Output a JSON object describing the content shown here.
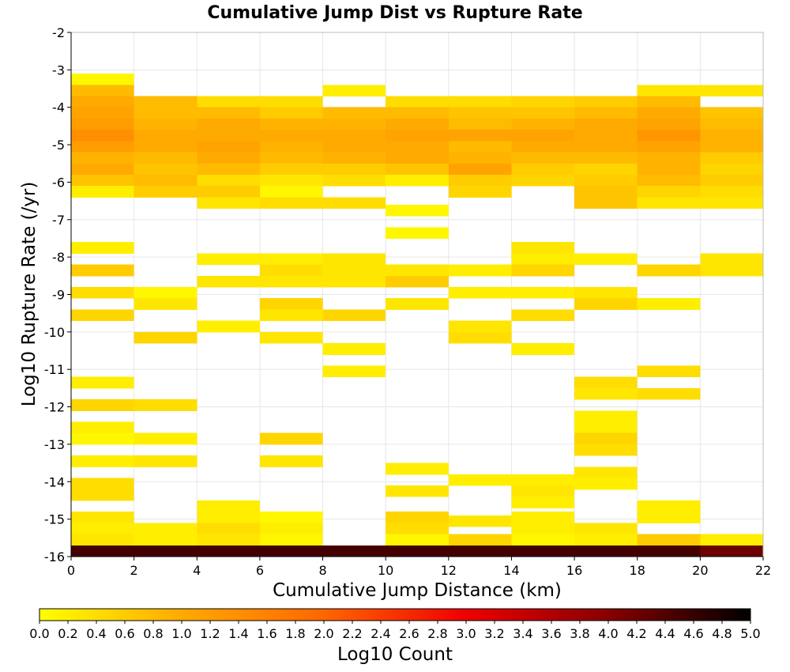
{
  "chart_data": {
    "type": "heatmap",
    "title": "Cumulative Jump Dist vs Rupture Rate",
    "xlabel": "Cumulative Jump Distance (km)",
    "ylabel": "Log10 Rupture Rate (/yr)",
    "xlim": [
      0,
      22
    ],
    "ylim": [
      -16,
      -2
    ],
    "x_ticks": [
      "0",
      "2",
      "4",
      "6",
      "8",
      "10",
      "12",
      "14",
      "16",
      "18",
      "20",
      "22"
    ],
    "y_ticks": [
      "-2",
      "-3",
      "-4",
      "-5",
      "-6",
      "-7",
      "-8",
      "-9",
      "-10",
      "-11",
      "-12",
      "-13",
      "-14",
      "-15",
      "-16"
    ],
    "grid": true,
    "x_bin_width": 2,
    "y_bin_height": 0.3,
    "colorbar": {
      "label": "Log10 Count",
      "range": [
        0,
        5
      ],
      "ticks": [
        "0.0",
        "0.2",
        "0.4",
        "0.6",
        "0.8",
        "1.0",
        "1.2",
        "1.4",
        "1.6",
        "1.8",
        "2.0",
        "2.2",
        "2.4",
        "2.6",
        "2.8",
        "3.0",
        "3.2",
        "3.4",
        "3.6",
        "3.8",
        "4.0",
        "4.2",
        "4.4",
        "4.6",
        "4.8",
        "5.0"
      ],
      "colors": [
        "#ffff00",
        "#ffaa00",
        "#ff6600",
        "#ee0000",
        "#880000",
        "#000000"
      ]
    },
    "cells": [
      {
        "x": 0,
        "y": -3.4,
        "v": 0.1
      },
      {
        "x": 0,
        "y": -3.7,
        "v": 0.8
      },
      {
        "x": 0,
        "y": -4.0,
        "v": 1.0
      },
      {
        "x": 0,
        "y": -4.3,
        "v": 1.1
      },
      {
        "x": 0,
        "y": -4.6,
        "v": 1.2
      },
      {
        "x": 0,
        "y": -4.9,
        "v": 1.4
      },
      {
        "x": 0,
        "y": -5.2,
        "v": 1.2
      },
      {
        "x": 0,
        "y": -5.5,
        "v": 0.9
      },
      {
        "x": 0,
        "y": -5.8,
        "v": 1.0
      },
      {
        "x": 0,
        "y": -6.1,
        "v": 0.7
      },
      {
        "x": 0,
        "y": -6.4,
        "v": 0.2
      },
      {
        "x": 0,
        "y": -7.9,
        "v": 0.2
      },
      {
        "x": 0,
        "y": -8.5,
        "v": 0.6
      },
      {
        "x": 0,
        "y": -9.1,
        "v": 0.4
      },
      {
        "x": 0,
        "y": -9.7,
        "v": 0.5
      },
      {
        "x": 0,
        "y": -11.5,
        "v": 0.2
      },
      {
        "x": 0,
        "y": -12.1,
        "v": 0.5
      },
      {
        "x": 0,
        "y": -12.7,
        "v": 0.2
      },
      {
        "x": 0,
        "y": -13.0,
        "v": 0.1
      },
      {
        "x": 0,
        "y": -13.6,
        "v": 0.2
      },
      {
        "x": 0,
        "y": -14.2,
        "v": 0.4
      },
      {
        "x": 0,
        "y": -14.5,
        "v": 0.4
      },
      {
        "x": 0,
        "y": -15.1,
        "v": 0.3
      },
      {
        "x": 0,
        "y": -15.4,
        "v": 0.2
      },
      {
        "x": 0,
        "y": -15.7,
        "v": 0.3
      },
      {
        "x": 0,
        "y": -16.0,
        "v": 4.5
      },
      {
        "x": 2,
        "y": -4.0,
        "v": 0.8
      },
      {
        "x": 2,
        "y": -4.3,
        "v": 0.8
      },
      {
        "x": 2,
        "y": -4.6,
        "v": 0.9
      },
      {
        "x": 2,
        "y": -4.9,
        "v": 1.0
      },
      {
        "x": 2,
        "y": -5.2,
        "v": 1.0
      },
      {
        "x": 2,
        "y": -5.5,
        "v": 0.8
      },
      {
        "x": 2,
        "y": -5.8,
        "v": 0.7
      },
      {
        "x": 2,
        "y": -6.1,
        "v": 0.8
      },
      {
        "x": 2,
        "y": -6.4,
        "v": 0.6
      },
      {
        "x": 2,
        "y": -9.1,
        "v": 0.1
      },
      {
        "x": 2,
        "y": -9.4,
        "v": 0.3
      },
      {
        "x": 2,
        "y": -10.3,
        "v": 0.5
      },
      {
        "x": 2,
        "y": -12.1,
        "v": 0.4
      },
      {
        "x": 2,
        "y": -13.0,
        "v": 0.2
      },
      {
        "x": 2,
        "y": -13.6,
        "v": 0.3
      },
      {
        "x": 2,
        "y": -15.4,
        "v": 0.2
      },
      {
        "x": 2,
        "y": -15.7,
        "v": 0.2
      },
      {
        "x": 2,
        "y": -16.0,
        "v": 4.5
      },
      {
        "x": 4,
        "y": -4.0,
        "v": 0.4
      },
      {
        "x": 4,
        "y": -4.3,
        "v": 0.8
      },
      {
        "x": 4,
        "y": -4.6,
        "v": 1.0
      },
      {
        "x": 4,
        "y": -4.9,
        "v": 1.0
      },
      {
        "x": 4,
        "y": -5.2,
        "v": 1.1
      },
      {
        "x": 4,
        "y": -5.5,
        "v": 1.0
      },
      {
        "x": 4,
        "y": -5.8,
        "v": 0.8
      },
      {
        "x": 4,
        "y": -6.1,
        "v": 0.4
      },
      {
        "x": 4,
        "y": -6.4,
        "v": 0.6
      },
      {
        "x": 4,
        "y": -6.7,
        "v": 0.3
      },
      {
        "x": 4,
        "y": -8.2,
        "v": 0.2
      },
      {
        "x": 4,
        "y": -8.8,
        "v": 0.3
      },
      {
        "x": 4,
        "y": -10.0,
        "v": 0.2
      },
      {
        "x": 4,
        "y": -14.8,
        "v": 0.2
      },
      {
        "x": 4,
        "y": -15.1,
        "v": 0.2
      },
      {
        "x": 4,
        "y": -15.4,
        "v": 0.4
      },
      {
        "x": 4,
        "y": -15.7,
        "v": 0.3
      },
      {
        "x": 4,
        "y": -16.0,
        "v": 4.5
      },
      {
        "x": 6,
        "y": -4.0,
        "v": 0.4
      },
      {
        "x": 6,
        "y": -4.3,
        "v": 0.6
      },
      {
        "x": 6,
        "y": -4.6,
        "v": 0.9
      },
      {
        "x": 6,
        "y": -4.9,
        "v": 1.0
      },
      {
        "x": 6,
        "y": -5.2,
        "v": 0.9
      },
      {
        "x": 6,
        "y": -5.5,
        "v": 0.8
      },
      {
        "x": 6,
        "y": -5.8,
        "v": 0.6
      },
      {
        "x": 6,
        "y": -6.1,
        "v": 0.3
      },
      {
        "x": 6,
        "y": -6.4,
        "v": 0.1
      },
      {
        "x": 6,
        "y": -6.7,
        "v": 0.4
      },
      {
        "x": 6,
        "y": -8.2,
        "v": 0.2
      },
      {
        "x": 6,
        "y": -8.5,
        "v": 0.4
      },
      {
        "x": 6,
        "y": -8.8,
        "v": 0.3
      },
      {
        "x": 6,
        "y": -9.4,
        "v": 0.5
      },
      {
        "x": 6,
        "y": -9.7,
        "v": 0.3
      },
      {
        "x": 6,
        "y": -10.3,
        "v": 0.3
      },
      {
        "x": 6,
        "y": -13.0,
        "v": 0.5
      },
      {
        "x": 6,
        "y": -13.6,
        "v": 0.3
      },
      {
        "x": 6,
        "y": -15.1,
        "v": 0.1
      },
      {
        "x": 6,
        "y": -15.4,
        "v": 0.2
      },
      {
        "x": 6,
        "y": -15.7,
        "v": 0.1
      },
      {
        "x": 6,
        "y": -16.0,
        "v": 4.5
      },
      {
        "x": 8,
        "y": -3.7,
        "v": 0.2
      },
      {
        "x": 8,
        "y": -4.3,
        "v": 0.8
      },
      {
        "x": 8,
        "y": -4.6,
        "v": 0.9
      },
      {
        "x": 8,
        "y": -4.9,
        "v": 1.0
      },
      {
        "x": 8,
        "y": -5.2,
        "v": 1.0
      },
      {
        "x": 8,
        "y": -5.5,
        "v": 0.9
      },
      {
        "x": 8,
        "y": -5.8,
        "v": 0.6
      },
      {
        "x": 8,
        "y": -6.1,
        "v": 0.4
      },
      {
        "x": 8,
        "y": -6.7,
        "v": 0.4
      },
      {
        "x": 8,
        "y": -8.2,
        "v": 0.3
      },
      {
        "x": 8,
        "y": -8.5,
        "v": 0.3
      },
      {
        "x": 8,
        "y": -8.8,
        "v": 0.3
      },
      {
        "x": 8,
        "y": -9.7,
        "v": 0.5
      },
      {
        "x": 8,
        "y": -10.6,
        "v": 0.2
      },
      {
        "x": 8,
        "y": -11.2,
        "v": 0.2
      },
      {
        "x": 8,
        "y": -16.0,
        "v": 4.5
      },
      {
        "x": 10,
        "y": -4.0,
        "v": 0.4
      },
      {
        "x": 10,
        "y": -4.3,
        "v": 0.8
      },
      {
        "x": 10,
        "y": -4.6,
        "v": 1.0
      },
      {
        "x": 10,
        "y": -4.9,
        "v": 1.1
      },
      {
        "x": 10,
        "y": -5.2,
        "v": 1.0
      },
      {
        "x": 10,
        "y": -5.5,
        "v": 1.0
      },
      {
        "x": 10,
        "y": -5.8,
        "v": 0.7
      },
      {
        "x": 10,
        "y": -6.1,
        "v": 0.2
      },
      {
        "x": 10,
        "y": -6.9,
        "v": 0.1
      },
      {
        "x": 10,
        "y": -7.5,
        "v": 0.1
      },
      {
        "x": 10,
        "y": -8.5,
        "v": 0.3
      },
      {
        "x": 10,
        "y": -8.8,
        "v": 0.6
      },
      {
        "x": 10,
        "y": -9.4,
        "v": 0.3
      },
      {
        "x": 10,
        "y": -13.8,
        "v": 0.2
      },
      {
        "x": 10,
        "y": -14.4,
        "v": 0.3
      },
      {
        "x": 10,
        "y": -15.1,
        "v": 0.5
      },
      {
        "x": 10,
        "y": -15.4,
        "v": 0.4
      },
      {
        "x": 10,
        "y": -15.7,
        "v": 0.1
      },
      {
        "x": 10,
        "y": -16.0,
        "v": 4.5
      },
      {
        "x": 12,
        "y": -4.0,
        "v": 0.4
      },
      {
        "x": 12,
        "y": -4.3,
        "v": 0.7
      },
      {
        "x": 12,
        "y": -4.6,
        "v": 0.8
      },
      {
        "x": 12,
        "y": -4.9,
        "v": 1.1
      },
      {
        "x": 12,
        "y": -5.2,
        "v": 0.8
      },
      {
        "x": 12,
        "y": -5.5,
        "v": 0.9
      },
      {
        "x": 12,
        "y": -5.8,
        "v": 1.1
      },
      {
        "x": 12,
        "y": -6.1,
        "v": 0.6
      },
      {
        "x": 12,
        "y": -6.4,
        "v": 0.5
      },
      {
        "x": 12,
        "y": -8.5,
        "v": 0.2
      },
      {
        "x": 12,
        "y": -9.1,
        "v": 0.2
      },
      {
        "x": 12,
        "y": -10.0,
        "v": 0.3
      },
      {
        "x": 12,
        "y": -10.3,
        "v": 0.4
      },
      {
        "x": 12,
        "y": -14.1,
        "v": 0.2
      },
      {
        "x": 12,
        "y": -15.2,
        "v": 0.3
      },
      {
        "x": 12,
        "y": -15.7,
        "v": 0.5
      },
      {
        "x": 12,
        "y": -16.0,
        "v": 4.5
      },
      {
        "x": 14,
        "y": -4.0,
        "v": 0.5
      },
      {
        "x": 14,
        "y": -4.3,
        "v": 0.7
      },
      {
        "x": 14,
        "y": -4.6,
        "v": 0.9
      },
      {
        "x": 14,
        "y": -4.9,
        "v": 1.1
      },
      {
        "x": 14,
        "y": -5.2,
        "v": 1.0
      },
      {
        "x": 14,
        "y": -5.5,
        "v": 0.8
      },
      {
        "x": 14,
        "y": -5.8,
        "v": 0.6
      },
      {
        "x": 14,
        "y": -6.1,
        "v": 0.5
      },
      {
        "x": 14,
        "y": -7.9,
        "v": 0.3
      },
      {
        "x": 14,
        "y": -8.2,
        "v": 0.2
      },
      {
        "x": 14,
        "y": -8.5,
        "v": 0.5
      },
      {
        "x": 14,
        "y": -9.1,
        "v": 0.2
      },
      {
        "x": 14,
        "y": -9.7,
        "v": 0.4
      },
      {
        "x": 14,
        "y": -10.6,
        "v": 0.2
      },
      {
        "x": 14,
        "y": -14.1,
        "v": 0.2
      },
      {
        "x": 14,
        "y": -14.4,
        "v": 0.3
      },
      {
        "x": 14,
        "y": -14.7,
        "v": 0.2
      },
      {
        "x": 14,
        "y": -15.1,
        "v": 0.2
      },
      {
        "x": 14,
        "y": -15.4,
        "v": 0.2
      },
      {
        "x": 14,
        "y": -15.7,
        "v": 0.1
      },
      {
        "x": 14,
        "y": -16.0,
        "v": 4.5
      },
      {
        "x": 16,
        "y": -4.0,
        "v": 0.6
      },
      {
        "x": 16,
        "y": -4.3,
        "v": 0.8
      },
      {
        "x": 16,
        "y": -4.6,
        "v": 1.0
      },
      {
        "x": 16,
        "y": -4.9,
        "v": 1.0
      },
      {
        "x": 16,
        "y": -5.2,
        "v": 1.0
      },
      {
        "x": 16,
        "y": -5.5,
        "v": 0.8
      },
      {
        "x": 16,
        "y": -5.8,
        "v": 0.5
      },
      {
        "x": 16,
        "y": -6.1,
        "v": 0.6
      },
      {
        "x": 16,
        "y": -6.4,
        "v": 0.7
      },
      {
        "x": 16,
        "y": -6.7,
        "v": 0.7
      },
      {
        "x": 16,
        "y": -8.2,
        "v": 0.2
      },
      {
        "x": 16,
        "y": -9.1,
        "v": 0.3
      },
      {
        "x": 16,
        "y": -9.4,
        "v": 0.5
      },
      {
        "x": 16,
        "y": -11.5,
        "v": 0.4
      },
      {
        "x": 16,
        "y": -11.8,
        "v": 0.3
      },
      {
        "x": 16,
        "y": -12.4,
        "v": 0.2
      },
      {
        "x": 16,
        "y": -12.7,
        "v": 0.2
      },
      {
        "x": 16,
        "y": -13.0,
        "v": 0.5
      },
      {
        "x": 16,
        "y": -13.3,
        "v": 0.4
      },
      {
        "x": 16,
        "y": -13.9,
        "v": 0.3
      },
      {
        "x": 16,
        "y": -14.2,
        "v": 0.2
      },
      {
        "x": 16,
        "y": -15.4,
        "v": 0.3
      },
      {
        "x": 16,
        "y": -15.7,
        "v": 0.2
      },
      {
        "x": 16,
        "y": -16.0,
        "v": 4.5
      },
      {
        "x": 18,
        "y": -3.7,
        "v": 0.3
      },
      {
        "x": 18,
        "y": -4.0,
        "v": 0.8
      },
      {
        "x": 18,
        "y": -4.3,
        "v": 1.0
      },
      {
        "x": 18,
        "y": -4.6,
        "v": 1.1
      },
      {
        "x": 18,
        "y": -4.9,
        "v": 1.3
      },
      {
        "x": 18,
        "y": -5.2,
        "v": 1.1
      },
      {
        "x": 18,
        "y": -5.5,
        "v": 0.9
      },
      {
        "x": 18,
        "y": -5.8,
        "v": 0.9
      },
      {
        "x": 18,
        "y": -6.1,
        "v": 0.8
      },
      {
        "x": 18,
        "y": -6.4,
        "v": 0.5
      },
      {
        "x": 18,
        "y": -6.7,
        "v": 0.3
      },
      {
        "x": 18,
        "y": -8.5,
        "v": 0.5
      },
      {
        "x": 18,
        "y": -9.4,
        "v": 0.2
      },
      {
        "x": 18,
        "y": -11.2,
        "v": 0.4
      },
      {
        "x": 18,
        "y": -11.8,
        "v": 0.4
      },
      {
        "x": 18,
        "y": -14.8,
        "v": 0.2
      },
      {
        "x": 18,
        "y": -15.1,
        "v": 0.2
      },
      {
        "x": 18,
        "y": -15.7,
        "v": 0.6
      },
      {
        "x": 18,
        "y": -16.0,
        "v": 4.5
      },
      {
        "x": 20,
        "y": -3.7,
        "v": 0.3
      },
      {
        "x": 20,
        "y": -4.3,
        "v": 0.7
      },
      {
        "x": 20,
        "y": -4.6,
        "v": 0.8
      },
      {
        "x": 20,
        "y": -4.9,
        "v": 0.9
      },
      {
        "x": 20,
        "y": -5.2,
        "v": 0.9
      },
      {
        "x": 20,
        "y": -5.5,
        "v": 0.6
      },
      {
        "x": 20,
        "y": -5.8,
        "v": 0.5
      },
      {
        "x": 20,
        "y": -6.1,
        "v": 0.6
      },
      {
        "x": 20,
        "y": -6.4,
        "v": 0.4
      },
      {
        "x": 20,
        "y": -6.7,
        "v": 0.3
      },
      {
        "x": 20,
        "y": -8.2,
        "v": 0.3
      },
      {
        "x": 20,
        "y": -8.5,
        "v": 0.3
      },
      {
        "x": 20,
        "y": -15.7,
        "v": 0.2
      },
      {
        "x": 20,
        "y": -16.0,
        "v": 4.2
      }
    ]
  }
}
